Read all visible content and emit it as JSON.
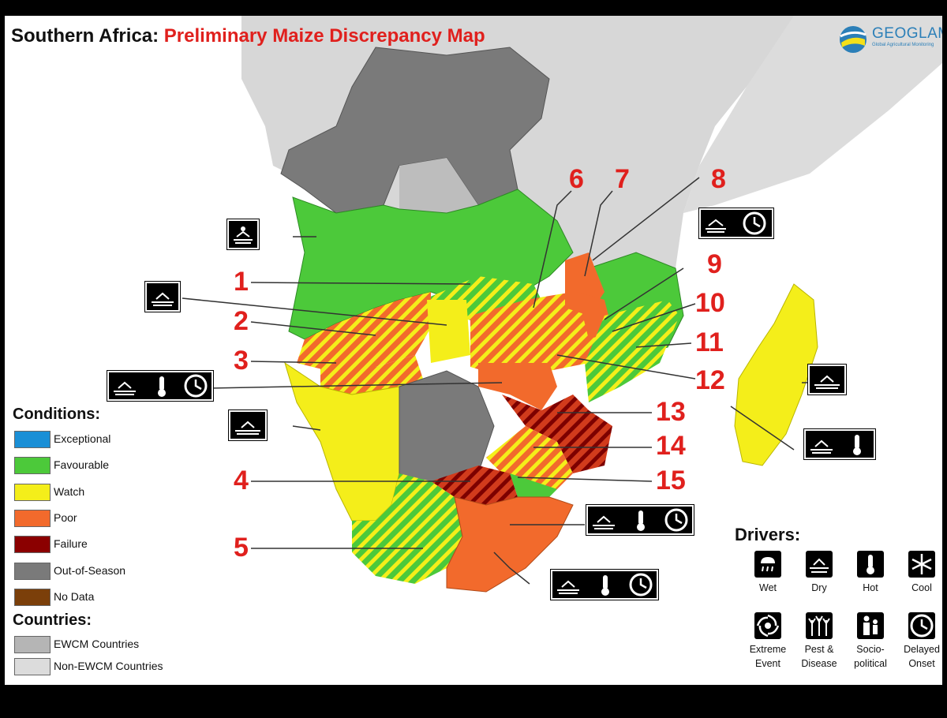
{
  "title": {
    "main": "Southern Africa:",
    "sub": "Preliminary Maize Discrepancy Map"
  },
  "logo": {
    "name": "GEOGLAM",
    "tagline": "Global Agricultural Monitoring"
  },
  "conditions": {
    "heading": "Conditions:",
    "items": [
      {
        "label": "Exceptional",
        "color": "#1a8fd6"
      },
      {
        "label": "Favourable",
        "color": "#4cc93a"
      },
      {
        "label": "Watch",
        "color": "#f4ee1a"
      },
      {
        "label": "Poor",
        "color": "#f26a2c"
      },
      {
        "label": "Failure",
        "color": "#8b0000"
      },
      {
        "label": "Out-of-Season",
        "color": "#7a7a7a"
      },
      {
        "label": "No Data",
        "color": "#7b3f0a"
      }
    ]
  },
  "countries": {
    "heading": "Countries:",
    "items": [
      {
        "label": "EWCM Countries",
        "color": "#b5b5b5"
      },
      {
        "label": "Non-EWCM Countries",
        "color": "#dcdcdc"
      }
    ]
  },
  "drivers": {
    "heading": "Drivers:",
    "items": [
      {
        "label": "Wet",
        "icon": "wet-icon"
      },
      {
        "label": "Dry",
        "icon": "dry-icon"
      },
      {
        "label": "Hot",
        "icon": "hot-icon"
      },
      {
        "label": "Cool",
        "icon": "cool-icon"
      },
      {
        "label": "Extreme\nEvent",
        "icon": "extreme-event-icon"
      },
      {
        "label": "Pest &\nDisease",
        "icon": "pest-disease-icon"
      },
      {
        "label": "Socio-\npolitical",
        "icon": "socio-political-icon"
      },
      {
        "label": "Delayed\nOnset",
        "icon": "delayed-onset-icon"
      }
    ]
  },
  "annotations": [
    "1",
    "2",
    "3",
    "4",
    "5",
    "6",
    "7",
    "8",
    "9",
    "10",
    "11",
    "12",
    "13",
    "14",
    "15"
  ]
}
